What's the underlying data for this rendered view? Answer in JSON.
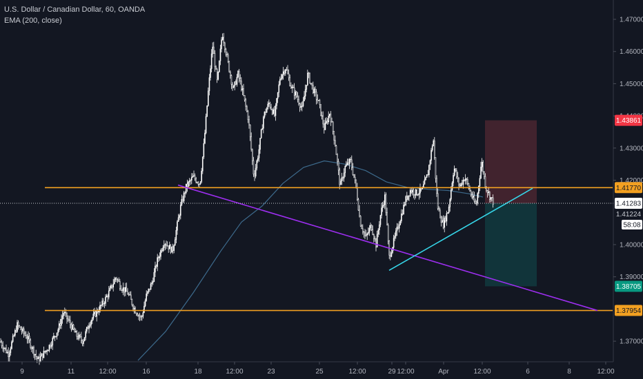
{
  "legend": {
    "symbol": "U.S. Dollar / Canadian Dollar, 60, OANDA",
    "indicator": "EMA (200, close)"
  },
  "chart_data": {
    "type": "candlestick",
    "ylim": [
      1.3636,
      1.476
    ],
    "y_ticks": [
      "1.47000",
      "1.46000",
      "1.45000",
      "1.44000",
      "1.43000",
      "1.42000",
      "1.40000",
      "1.39000",
      "1.37000"
    ],
    "x_ticks": [
      "9",
      "11",
      "12:00",
      "16",
      "18",
      "12:00",
      "23",
      "25",
      "12:00",
      "29",
      "12:00",
      "Apr",
      "12:00",
      "6",
      "8",
      "12:00"
    ],
    "price_path": [
      [
        0,
        1.37
      ],
      [
        12,
        1.366
      ],
      [
        25,
        1.375
      ],
      [
        40,
        1.371
      ],
      [
        55,
        1.364
      ],
      [
        70,
        1.368
      ],
      [
        85,
        1.374
      ],
      [
        92,
        1.379
      ],
      [
        100,
        1.376
      ],
      [
        110,
        1.372
      ],
      [
        120,
        1.37
      ],
      [
        130,
        1.376
      ],
      [
        140,
        1.379
      ],
      [
        150,
        1.382
      ],
      [
        160,
        1.386
      ],
      [
        168,
        1.39
      ],
      [
        175,
        1.387
      ],
      [
        185,
        1.385
      ],
      [
        195,
        1.38
      ],
      [
        205,
        1.377
      ],
      [
        212,
        1.384
      ],
      [
        220,
        1.388
      ],
      [
        228,
        1.395
      ],
      [
        238,
        1.401
      ],
      [
        250,
        1.398
      ],
      [
        262,
        1.412
      ],
      [
        270,
        1.418
      ],
      [
        280,
        1.421
      ],
      [
        290,
        1.419
      ],
      [
        296,
        1.432
      ],
      [
        302,
        1.448
      ],
      [
        308,
        1.462
      ],
      [
        315,
        1.45
      ],
      [
        322,
        1.466
      ],
      [
        330,
        1.457
      ],
      [
        338,
        1.448
      ],
      [
        345,
        1.453
      ],
      [
        352,
        1.447
      ],
      [
        360,
        1.439
      ],
      [
        368,
        1.421
      ],
      [
        375,
        1.429
      ],
      [
        382,
        1.44
      ],
      [
        390,
        1.444
      ],
      [
        398,
        1.44
      ],
      [
        406,
        1.452
      ],
      [
        414,
        1.455
      ],
      [
        422,
        1.449
      ],
      [
        430,
        1.446
      ],
      [
        438,
        1.442
      ],
      [
        446,
        1.453
      ],
      [
        454,
        1.448
      ],
      [
        462,
        1.444
      ],
      [
        470,
        1.436
      ],
      [
        478,
        1.441
      ],
      [
        486,
        1.431
      ],
      [
        493,
        1.418
      ],
      [
        500,
        1.424
      ],
      [
        508,
        1.426
      ],
      [
        516,
        1.418
      ],
      [
        522,
        1.407
      ],
      [
        530,
        1.402
      ],
      [
        538,
        1.406
      ],
      [
        545,
        1.4
      ],
      [
        552,
        1.41
      ],
      [
        558,
        1.415
      ],
      [
        564,
        1.396
      ],
      [
        572,
        1.402
      ],
      [
        580,
        1.408
      ],
      [
        588,
        1.414
      ],
      [
        595,
        1.417
      ],
      [
        603,
        1.416
      ],
      [
        612,
        1.417
      ],
      [
        620,
        1.422
      ],
      [
        628,
        1.433
      ],
      [
        634,
        1.412
      ],
      [
        642,
        1.406
      ],
      [
        650,
        1.411
      ],
      [
        658,
        1.424
      ],
      [
        666,
        1.418
      ],
      [
        674,
        1.421
      ],
      [
        682,
        1.416
      ],
      [
        690,
        1.412
      ],
      [
        698,
        1.426
      ],
      [
        704,
        1.418
      ],
      [
        710,
        1.415
      ],
      [
        716,
        1.4128
      ]
    ],
    "ema_path": [
      [
        200,
        1.364
      ],
      [
        240,
        1.373
      ],
      [
        280,
        1.385
      ],
      [
        320,
        1.398
      ],
      [
        350,
        1.407
      ],
      [
        380,
        1.412
      ],
      [
        410,
        1.419
      ],
      [
        440,
        1.424
      ],
      [
        470,
        1.426
      ],
      [
        500,
        1.425
      ],
      [
        530,
        1.423
      ],
      [
        560,
        1.4195
      ],
      [
        590,
        1.4178
      ],
      [
        620,
        1.4172
      ],
      [
        650,
        1.4168
      ],
      [
        680,
        1.4158
      ],
      [
        700,
        1.4148
      ]
    ],
    "lines": [
      {
        "name": "resistance",
        "color": "#f2a021",
        "y": 1.4177,
        "x1": 65,
        "x2": 888
      },
      {
        "name": "support",
        "color": "#f2a021",
        "y": 1.37954,
        "x1": 65,
        "x2": 888
      },
      {
        "name": "downtrend",
        "color": "#9d2ef0",
        "p1": [
          258,
          1.4185
        ],
        "p2": [
          866,
          1.37954
        ]
      },
      {
        "name": "uptrend",
        "color": "#36d5e8",
        "p1": [
          564,
          1.392
        ],
        "p2": [
          772,
          1.4175
        ]
      }
    ],
    "position": {
      "entry": 1.41283,
      "stop": 1.43861,
      "target": 1.38705,
      "x1": 703,
      "x2": 778
    },
    "last_price": 1.41283,
    "countdown_price": "1.41224",
    "countdown": "58:08",
    "price_labels": [
      {
        "text": "1.43861",
        "value": 1.43861,
        "bg": "#f23645",
        "fg": "#ffffff"
      },
      {
        "text": "1.41770",
        "value": 1.4177,
        "bg": "#f2a021",
        "fg": "#131722"
      },
      {
        "text": "1.41283",
        "value": 1.41283,
        "bg": "#ffffff",
        "fg": "#131722"
      },
      {
        "text": "1.38705",
        "value": 1.38705,
        "bg": "#089981",
        "fg": "#ffffff"
      },
      {
        "text": "1.37954",
        "value": 1.37954,
        "bg": "#f2a021",
        "fg": "#131722"
      }
    ],
    "colors": {
      "background": "#131722",
      "candle": "#ffffff",
      "ema": "#3d6a8c",
      "stop_zone": "#4a2630",
      "target_zone": "#12373d",
      "axis": "#b2b5be"
    }
  }
}
